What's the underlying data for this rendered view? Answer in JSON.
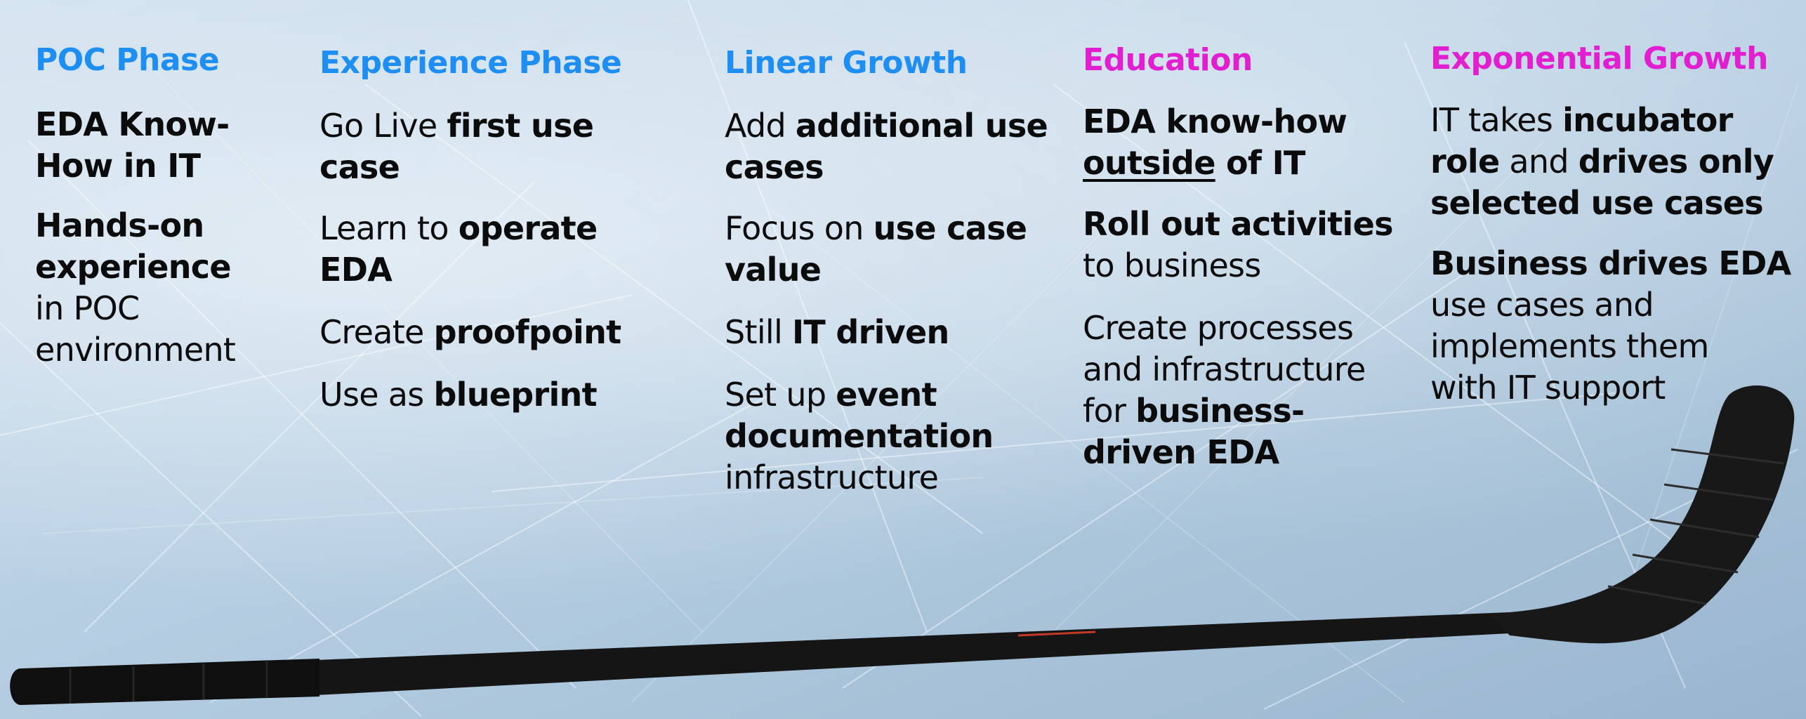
{
  "colors": {
    "blue_heading": "#1e8ef2",
    "pink_heading": "#e11fd0",
    "text": "#0b0b0b",
    "ice": "#b7cfe3",
    "stick": "#141414"
  },
  "columns": [
    {
      "heading": "POC Phase",
      "heading_color": "blue",
      "items": [
        [
          {
            "t": "EDA Know-",
            "b": true
          },
          {
            "br": true
          },
          {
            "t": "How in IT",
            "b": true
          }
        ],
        [
          {
            "t": "Hands-on",
            "b": true
          },
          {
            "br": true
          },
          {
            "t": "experience",
            "b": true
          },
          {
            "br": true
          },
          {
            "t": "in POC"
          },
          {
            "br": true
          },
          {
            "t": "environment"
          }
        ]
      ]
    },
    {
      "heading": "Experience Phase",
      "heading_color": "blue",
      "items": [
        [
          {
            "t": "Go Live "
          },
          {
            "t": "first use",
            "b": true
          },
          {
            "br": true
          },
          {
            "t": "case",
            "b": true
          }
        ],
        [
          {
            "t": "Learn to "
          },
          {
            "t": "operate",
            "b": true
          },
          {
            "br": true
          },
          {
            "t": "EDA",
            "b": true
          }
        ],
        [
          {
            "t": "Create "
          },
          {
            "t": "proofpoint",
            "b": true
          }
        ],
        [
          {
            "t": "Use as "
          },
          {
            "t": "blueprint",
            "b": true
          }
        ]
      ]
    },
    {
      "heading": "Linear Growth",
      "heading_color": "blue",
      "items": [
        [
          {
            "t": "Add "
          },
          {
            "t": "additional use",
            "b": true
          },
          {
            "br": true
          },
          {
            "t": "cases",
            "b": true
          }
        ],
        [
          {
            "t": "Focus on "
          },
          {
            "t": "use case",
            "b": true
          },
          {
            "br": true
          },
          {
            "t": "value",
            "b": true
          }
        ],
        [
          {
            "t": "Still "
          },
          {
            "t": "IT driven",
            "b": true
          }
        ],
        [
          {
            "t": "Set up "
          },
          {
            "t": "event",
            "b": true
          },
          {
            "br": true
          },
          {
            "t": "documentation",
            "b": true
          },
          {
            "br": true
          },
          {
            "t": "infrastructure"
          }
        ]
      ]
    },
    {
      "heading": "Education",
      "heading_color": "pink",
      "items": [
        [
          {
            "t": "EDA know-how",
            "b": true
          },
          {
            "br": true
          },
          {
            "t": "outside",
            "b": true,
            "u": true
          },
          {
            "t": " of IT",
            "b": true
          }
        ],
        [
          {
            "t": "Roll out activities",
            "b": true
          },
          {
            "br": true
          },
          {
            "t": "to business"
          }
        ],
        [
          {
            "t": "Create processes"
          },
          {
            "br": true
          },
          {
            "t": "and infrastructure"
          },
          {
            "br": true
          },
          {
            "t": "for "
          },
          {
            "t": "business-",
            "b": true
          },
          {
            "br": true
          },
          {
            "t": "driven EDA",
            "b": true
          }
        ]
      ]
    },
    {
      "heading": "Exponential Growth",
      "heading_color": "pink",
      "items": [
        [
          {
            "t": "IT takes "
          },
          {
            "t": "incubator",
            "b": true
          },
          {
            "br": true
          },
          {
            "t": "role",
            "b": true
          },
          {
            "t": " and "
          },
          {
            "t": "drives only",
            "b": true
          },
          {
            "br": true
          },
          {
            "t": "selected use cases",
            "b": true
          }
        ],
        [
          {
            "t": "Business drives EDA",
            "b": true
          },
          {
            "br": true
          },
          {
            "t": "use cases and"
          },
          {
            "br": true
          },
          {
            "t": "implements them"
          },
          {
            "br": true
          },
          {
            "t": "with IT support"
          }
        ]
      ]
    }
  ]
}
